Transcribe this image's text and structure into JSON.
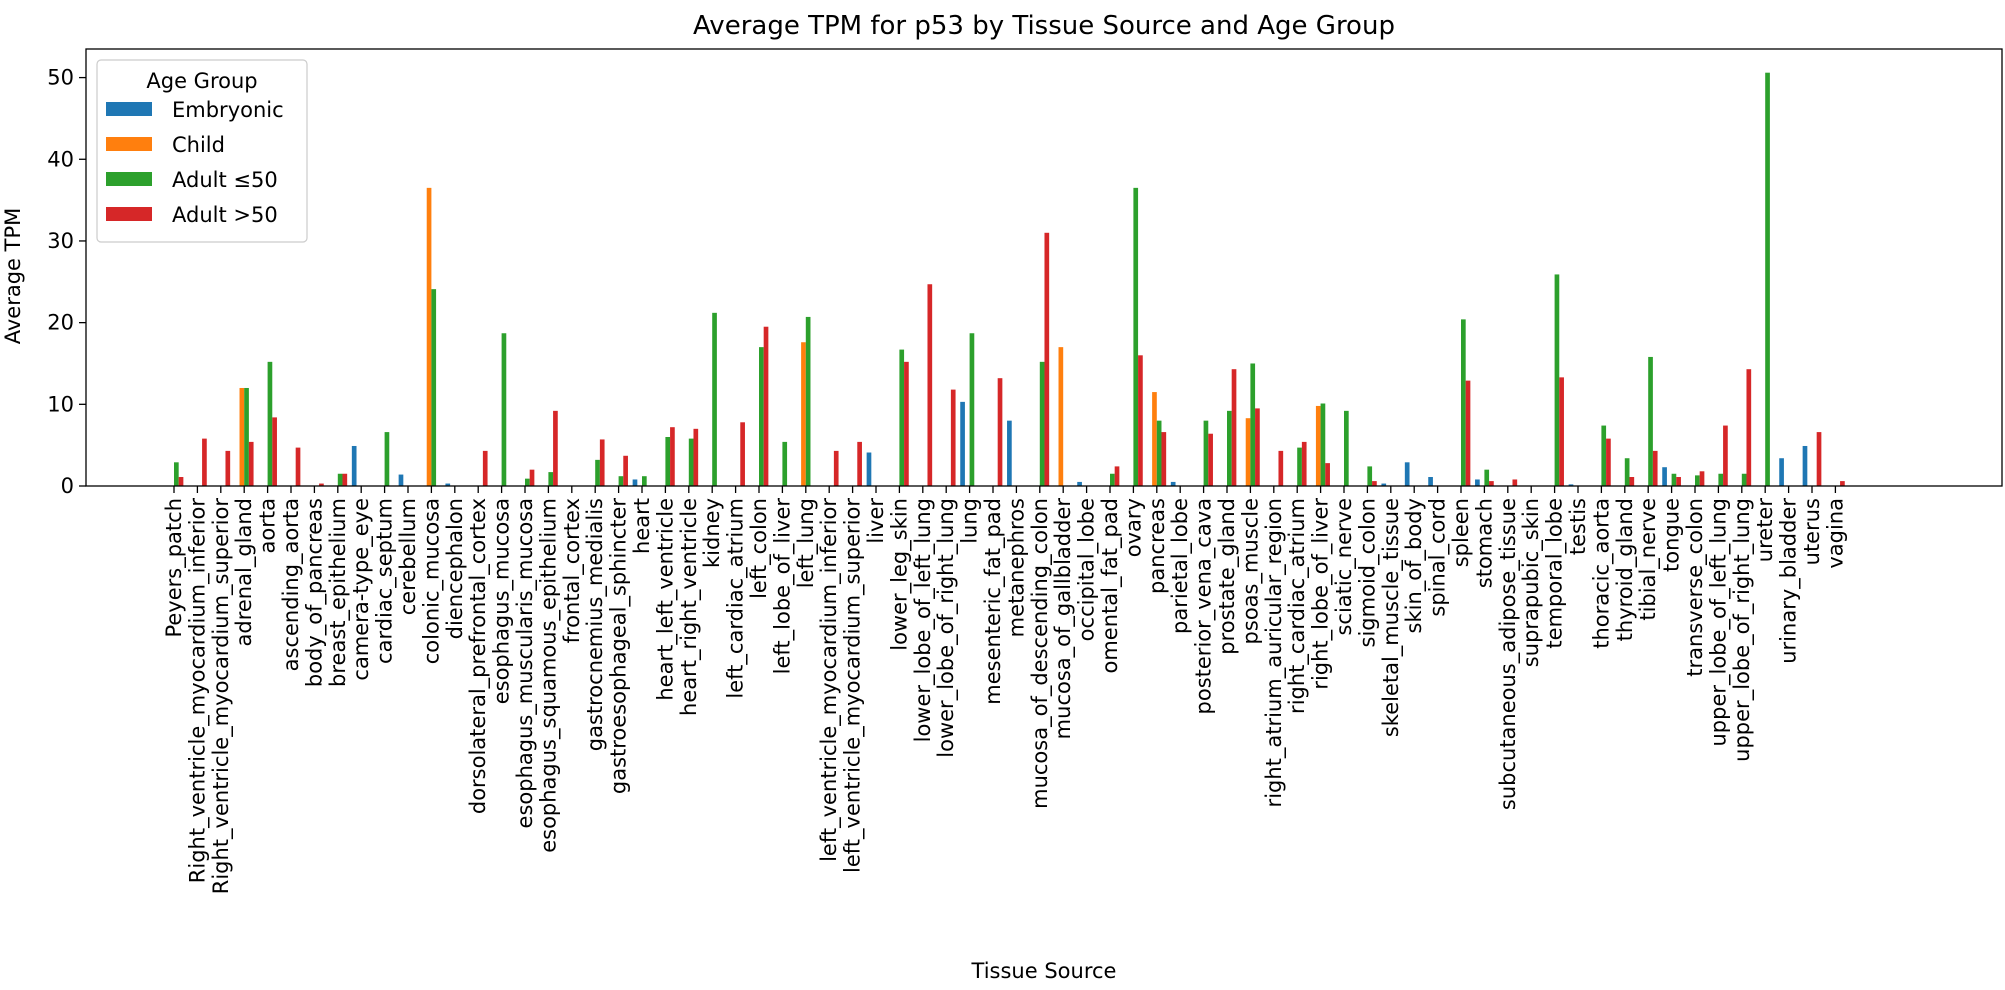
{
  "chart_data": {
    "type": "bar",
    "title": "Average TPM for p53 by Tissue Source and Age Group",
    "xlabel": "Tissue Source",
    "ylabel": "Average TPM",
    "ylim": [
      0,
      53.5
    ],
    "yticks": [
      0,
      10,
      20,
      30,
      40,
      50
    ],
    "grid": false,
    "legend": {
      "title": "Age Group",
      "placement": "top-left"
    },
    "categories": [
      "Peyers_patch",
      "Right_ventricle_myocardium_inferior",
      "Right_ventricle_myocardium_superior",
      "adrenal_gland",
      "aorta",
      "ascending_aorta",
      "body_of_pancreas",
      "breast_epithelium",
      "camera-type_eye",
      "cardiac_septum",
      "cerebellum",
      "colonic_mucosa",
      "diencephalon",
      "dorsolateral_prefrontal_cortex",
      "esophagus_mucosa",
      "esophagus_muscularis_mucosa",
      "esophagus_squamous_epithelium",
      "frontal_cortex",
      "gastrocnemius_medialis",
      "gastroesophageal_sphincter",
      "heart",
      "heart_left_ventricle",
      "heart_right_ventricle",
      "kidney",
      "left_cardiac_atrium",
      "left_colon",
      "left_lobe_of_liver",
      "left_lung",
      "left_ventricle_myocardium_inferior",
      "left_ventricle_myocardium_superior",
      "liver",
      "lower_leg_skin",
      "lower_lobe_of_left_lung",
      "lower_lobe_of_right_lung",
      "lung",
      "mesenteric_fat_pad",
      "metanephros",
      "mucosa_of_descending_colon",
      "mucosa_of_gallbladder",
      "occipital_lobe",
      "omental_fat_pad",
      "ovary",
      "pancreas",
      "parietal_lobe",
      "posterior_vena_cava",
      "prostate_gland",
      "psoas_muscle",
      "right_atrium_auricular_region",
      "right_cardiac_atrium",
      "right_lobe_of_liver",
      "sciatic_nerve",
      "sigmoid_colon",
      "skeletal_muscle_tissue",
      "skin_of_body",
      "spinal_cord",
      "spleen",
      "stomach",
      "subcutaneous_adipose_tissue",
      "suprapubic_skin",
      "temporal_lobe",
      "testis",
      "thoracic_aorta",
      "thyroid_gland",
      "tibial_nerve",
      "tongue",
      "transverse_colon",
      "upper_lobe_of_left_lung",
      "upper_lobe_of_right_lung",
      "ureter",
      "urinary_bladder",
      "uterus",
      "vagina"
    ],
    "series": [
      {
        "name": "Embryonic",
        "color": "#1f77b4",
        "values": [
          0,
          0,
          0,
          0,
          0,
          0,
          0,
          0,
          4.9,
          0,
          1.4,
          0,
          0.3,
          0,
          0,
          0,
          0,
          0,
          0,
          0,
          0.8,
          0,
          0,
          0,
          0,
          0,
          0,
          0,
          0,
          0,
          4.1,
          0,
          0,
          0,
          10.3,
          0,
          8.0,
          0,
          0,
          0.5,
          0,
          0,
          0,
          0.5,
          0,
          0,
          0,
          0,
          0,
          0,
          0,
          0,
          0.3,
          2.9,
          1.1,
          0,
          0.8,
          0,
          0,
          0,
          0.2,
          0,
          0,
          0,
          2.3,
          0,
          0,
          0,
          0,
          3.4,
          4.9,
          0
        ]
      },
      {
        "name": "Child",
        "color": "#ff7f0e",
        "values": [
          0,
          0,
          0,
          12.0,
          0,
          0,
          0,
          0,
          0,
          0,
          0,
          36.5,
          0,
          0,
          0,
          0,
          0,
          0,
          0,
          0,
          0,
          0,
          0,
          0,
          0,
          0,
          0,
          17.6,
          0,
          0,
          0,
          0,
          0,
          0,
          0,
          0,
          0,
          0,
          17.0,
          0,
          0,
          0,
          11.5,
          0,
          0,
          0,
          8.3,
          0,
          0,
          9.8,
          0,
          0,
          0,
          0,
          0,
          0,
          0,
          0,
          0,
          0,
          0,
          0,
          0,
          0,
          0,
          0,
          0,
          0,
          0,
          0,
          0,
          0
        ]
      },
      {
        "name": "Adult ≤50",
        "color": "#2ca02c",
        "values": [
          2.9,
          0,
          0,
          12.0,
          15.2,
          0,
          0,
          1.5,
          0,
          6.6,
          0,
          24.1,
          0,
          0,
          18.7,
          0.9,
          1.7,
          0,
          3.2,
          1.2,
          1.2,
          6.0,
          5.8,
          21.2,
          0,
          17.0,
          5.4,
          20.7,
          0,
          0,
          0,
          16.7,
          0,
          0,
          18.7,
          0,
          0,
          15.2,
          0,
          0,
          1.5,
          36.5,
          8.0,
          0,
          8.0,
          9.2,
          15.0,
          0,
          4.7,
          10.1,
          9.2,
          2.4,
          0,
          0,
          0,
          20.4,
          2.0,
          0,
          0,
          25.9,
          0,
          7.4,
          3.4,
          15.8,
          1.5,
          1.3,
          1.5,
          1.5,
          50.6,
          0,
          0,
          0
        ]
      },
      {
        "name": "Adult >50",
        "color": "#d62728",
        "values": [
          1.1,
          5.8,
          4.3,
          5.4,
          8.4,
          4.7,
          0.3,
          1.5,
          0,
          0,
          0,
          0,
          0,
          4.3,
          0,
          2.0,
          9.2,
          0,
          5.7,
          3.7,
          0,
          7.2,
          7.0,
          0,
          7.8,
          19.5,
          0,
          0,
          4.3,
          5.4,
          0,
          15.2,
          24.7,
          11.8,
          0,
          13.2,
          0,
          31.0,
          0,
          0,
          2.4,
          16.0,
          6.6,
          0,
          6.4,
          14.3,
          9.5,
          4.3,
          5.4,
          2.8,
          0,
          0.6,
          0,
          0,
          0,
          12.9,
          0.6,
          0.8,
          0,
          13.3,
          0,
          5.8,
          1.1,
          4.3,
          1.1,
          1.8,
          7.4,
          14.3,
          0,
          0,
          6.6,
          0.6
        ]
      }
    ]
  }
}
